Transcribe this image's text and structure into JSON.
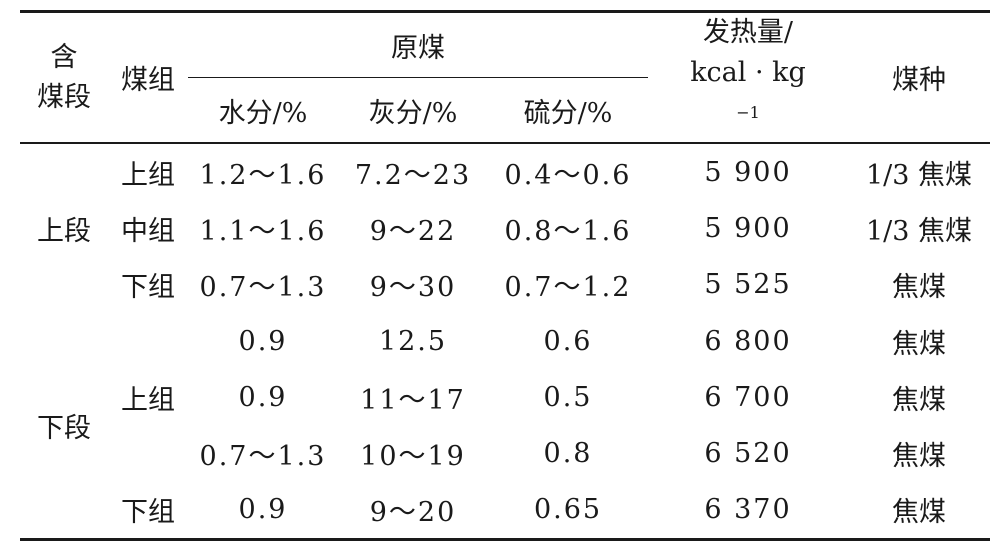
{
  "header": {
    "segment_line1": "含",
    "segment_line2": "煤段",
    "group": "煤组",
    "raw_coal": "原煤",
    "moisture": "水分/%",
    "ash": "灰分/%",
    "sulfur": "硫分/%",
    "heat_line1": "发热量/",
    "heat_line2_base": "kcal · kg",
    "heat_line2_exp": "−1",
    "coal_type": "煤种"
  },
  "rows": [
    {
      "segment": "",
      "group": "上组",
      "moisture": "1.2～1.6",
      "ash": "7.2～23",
      "sulfur": "0.4～0.6",
      "heat": "5 900",
      "coal_type": "1/3 焦煤"
    },
    {
      "segment": "上段",
      "group": "中组",
      "moisture": "1.1～1.6",
      "ash": "9～22",
      "sulfur": "0.8～1.6",
      "heat": "5 900",
      "coal_type": "1/3 焦煤"
    },
    {
      "segment": "",
      "group": "下组",
      "moisture": "0.7～1.3",
      "ash": "9～30",
      "sulfur": "0.7～1.2",
      "heat": "5 525",
      "coal_type": "焦煤"
    },
    {
      "segment": "",
      "group": "",
      "moisture": "0.9",
      "ash": "12.5",
      "sulfur": "0.6",
      "heat": "6 800",
      "coal_type": "焦煤"
    },
    {
      "segment": "",
      "group": "上组",
      "moisture": "0.9",
      "ash": "11～17",
      "sulfur": "0.5",
      "heat": "6 700",
      "coal_type": "焦煤"
    },
    {
      "segment": "下段",
      "group": "",
      "moisture": "0.7～1.3",
      "ash": "10～19",
      "sulfur": "0.8",
      "heat": "6 520",
      "coal_type": "焦煤"
    },
    {
      "segment": "",
      "group": "下组",
      "moisture": "0.9",
      "ash": "9～20",
      "sulfur": "0.65",
      "heat": "6 370",
      "coal_type": "焦煤"
    }
  ]
}
